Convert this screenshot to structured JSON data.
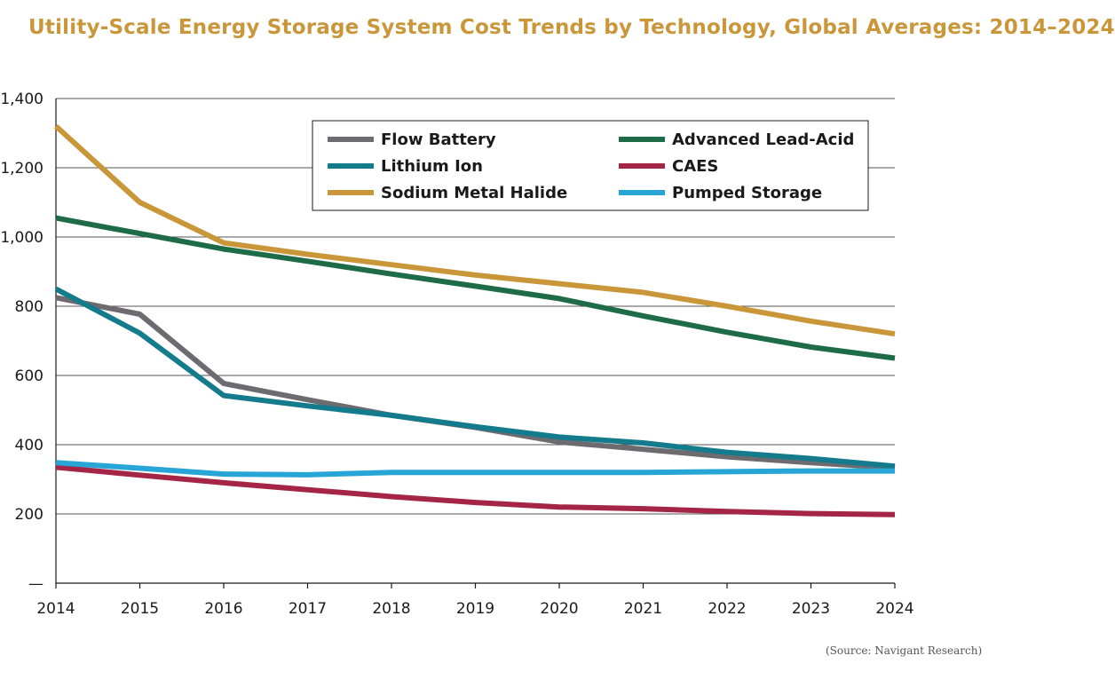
{
  "title": "Utility-Scale Energy Storage System Cost Trends by Technology, Global Averages: 2014–2024",
  "source": "(Source: Navigant Research)",
  "chart_data": {
    "type": "line",
    "title": "Utility-Scale Energy Storage System Cost Trends by Technology, Global Averages: 2014–2024",
    "x": [
      2014,
      2015,
      2016,
      2017,
      2018,
      2019,
      2020,
      2021,
      2022,
      2023,
      2024
    ],
    "xticks": [
      "2014",
      "2015",
      "2016",
      "2017",
      "2018",
      "2019",
      "2020",
      "2021",
      "2022",
      "2023",
      "2024"
    ],
    "yticks": [
      "—",
      "200",
      "400",
      "600",
      "800",
      "1,000",
      "1,200",
      "1,400"
    ],
    "ylim": [
      0,
      1400
    ],
    "xlim": [
      2014,
      2024
    ],
    "grid": true,
    "legend_position": "top-right",
    "series": [
      {
        "name": "Flow Battery",
        "color": "#6d6b70",
        "values": [
          825,
          777,
          577,
          530,
          485,
          450,
          408,
          387,
          365,
          348,
          333
        ]
      },
      {
        "name": "Advanced Lead-Acid",
        "color": "#1e6b47",
        "values": [
          1055,
          1010,
          965,
          930,
          893,
          858,
          822,
          772,
          725,
          682,
          650
        ]
      },
      {
        "name": "Lithium Ion",
        "color": "#137b8c",
        "values": [
          850,
          722,
          542,
          512,
          485,
          452,
          422,
          405,
          378,
          360,
          338
        ]
      },
      {
        "name": "CAES",
        "color": "#a42546",
        "values": [
          335,
          312,
          290,
          270,
          250,
          233,
          220,
          215,
          207,
          201,
          198
        ]
      },
      {
        "name": "Sodium Metal Halide",
        "color": "#c9973a",
        "values": [
          1320,
          1100,
          983,
          950,
          920,
          890,
          865,
          840,
          800,
          757,
          720
        ]
      },
      {
        "name": "Pumped Storage",
        "color": "#27a5d6",
        "values": [
          348,
          332,
          315,
          313,
          320,
          320,
          320,
          320,
          322,
          324,
          324
        ]
      }
    ]
  }
}
